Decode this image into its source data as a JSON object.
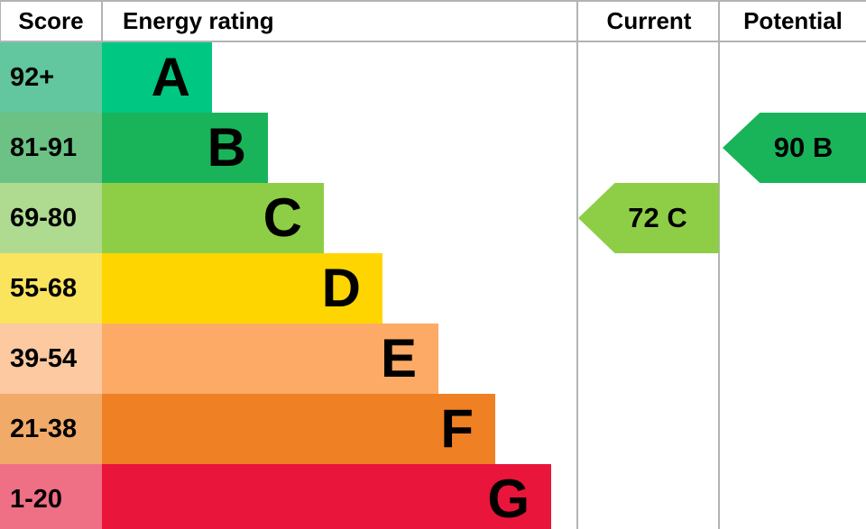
{
  "header": {
    "score": "Score",
    "energy_rating": "Energy rating",
    "current": "Current",
    "potential": "Potential"
  },
  "bands": [
    {
      "letter": "A",
      "score_range": "92+",
      "color": "#00c781",
      "tint": "#62c69e"
    },
    {
      "letter": "B",
      "score_range": "81-91",
      "color": "#19b459",
      "tint": "#6bc284"
    },
    {
      "letter": "C",
      "score_range": "69-80",
      "color": "#8dce46",
      "tint": "#aedb8f"
    },
    {
      "letter": "D",
      "score_range": "55-68",
      "color": "#ffd500",
      "tint": "#fae35d"
    },
    {
      "letter": "E",
      "score_range": "39-54",
      "color": "#fcaa65",
      "tint": "#fcc9a0"
    },
    {
      "letter": "F",
      "score_range": "21-38",
      "color": "#ef8023",
      "tint": "#f2aa69"
    },
    {
      "letter": "G",
      "score_range": "1-20",
      "color": "#e9153b",
      "tint": "#ef6f85"
    }
  ],
  "current": {
    "label": "72 C",
    "value": 72,
    "band": "C",
    "color": "#8dce46"
  },
  "potential": {
    "label": "90 B",
    "value": 90,
    "band": "B",
    "color": "#19b459"
  },
  "border_color": "#b1b4b6",
  "chart_data": {
    "type": "bar",
    "title": "Energy rating",
    "columns": [
      "Score",
      "Energy rating",
      "Current",
      "Potential"
    ],
    "categories": [
      "A",
      "B",
      "C",
      "D",
      "E",
      "F",
      "G"
    ],
    "score_ranges": [
      "92+",
      "81-91",
      "69-80",
      "55-68",
      "39-54",
      "21-38",
      "1-20"
    ],
    "bar_colors": [
      "#00c781",
      "#19b459",
      "#8dce46",
      "#ffd500",
      "#fcaa65",
      "#ef8023",
      "#e9153b"
    ],
    "bar_relative_lengths": [
      1,
      2,
      3,
      4,
      5,
      6,
      7
    ],
    "current": {
      "score": 72,
      "rating": "C"
    },
    "potential": {
      "score": 90,
      "rating": "B"
    },
    "legend_position": "none",
    "grid": false
  }
}
